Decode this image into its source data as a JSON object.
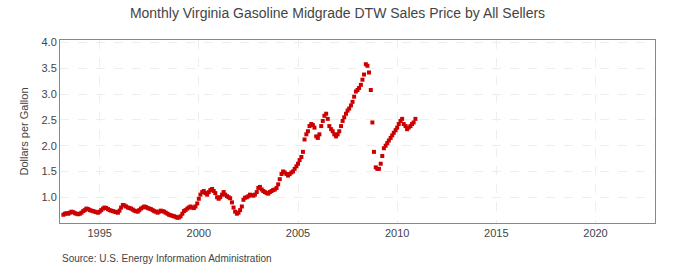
{
  "chart_data": {
    "type": "scatter",
    "title": "Monthly Virginia Gasoline Midgrade DTW Sales Price by All Sellers",
    "ylabel": "Dollars per Gallon",
    "annotations": [
      "Source: U.S. Energy Information Administration"
    ],
    "color": "#cc0000",
    "marker": "square",
    "grid": true,
    "xlim": [
      1993.0,
      2023.0
    ],
    "ylim": [
      0.5,
      4.05
    ],
    "xticks": [
      1995,
      2000,
      2005,
      2010,
      2015,
      2020
    ],
    "yticks": [
      {
        "value": 1.0,
        "label": "1.0"
      },
      {
        "value": 1.5,
        "label": "1.5"
      },
      {
        "value": 2.0,
        "label": "2.0"
      },
      {
        "value": 2.5,
        "label": "2.5"
      },
      {
        "value": 3.0,
        "label": "3.0"
      },
      {
        "value": 3.5,
        "label": "3.5"
      },
      {
        "value": 4.0,
        "label": "4.0"
      }
    ],
    "x": [
      1993.17,
      1993.25,
      1993.33,
      1993.42,
      1993.5,
      1993.58,
      1993.67,
      1993.75,
      1993.83,
      1993.92,
      1994.0,
      1994.08,
      1994.17,
      1994.25,
      1994.33,
      1994.42,
      1994.5,
      1994.58,
      1994.67,
      1994.75,
      1994.83,
      1994.92,
      1995.0,
      1995.08,
      1995.17,
      1995.25,
      1995.33,
      1995.42,
      1995.5,
      1995.58,
      1995.67,
      1995.75,
      1995.83,
      1995.92,
      1996.0,
      1996.08,
      1996.17,
      1996.25,
      1996.33,
      1996.42,
      1996.5,
      1996.58,
      1996.67,
      1996.75,
      1996.83,
      1996.92,
      1997.0,
      1997.08,
      1997.17,
      1997.25,
      1997.33,
      1997.42,
      1997.5,
      1997.58,
      1997.67,
      1997.75,
      1997.83,
      1997.92,
      1998.0,
      1998.08,
      1998.17,
      1998.25,
      1998.33,
      1998.42,
      1998.5,
      1998.58,
      1998.67,
      1998.75,
      1998.83,
      1998.92,
      1999.0,
      1999.08,
      1999.17,
      1999.25,
      1999.33,
      1999.42,
      1999.5,
      1999.58,
      1999.67,
      1999.75,
      1999.83,
      1999.92,
      2000.0,
      2000.08,
      2000.17,
      2000.25,
      2000.33,
      2000.42,
      2000.5,
      2000.58,
      2000.67,
      2000.75,
      2000.83,
      2000.92,
      2001.0,
      2001.08,
      2001.17,
      2001.25,
      2001.33,
      2001.42,
      2001.5,
      2001.58,
      2001.67,
      2001.75,
      2001.83,
      2001.92,
      2002.0,
      2002.08,
      2002.17,
      2002.25,
      2002.33,
      2002.42,
      2002.5,
      2002.58,
      2002.67,
      2002.75,
      2002.83,
      2002.92,
      2003.0,
      2003.08,
      2003.17,
      2003.25,
      2003.33,
      2003.42,
      2003.5,
      2003.58,
      2003.67,
      2003.75,
      2003.83,
      2003.92,
      2004.0,
      2004.08,
      2004.17,
      2004.25,
      2004.33,
      2004.42,
      2004.5,
      2004.58,
      2004.67,
      2004.75,
      2004.83,
      2004.92,
      2005.0,
      2005.08,
      2005.17,
      2005.25,
      2005.33,
      2005.42,
      2005.5,
      2005.58,
      2005.67,
      2005.75,
      2005.83,
      2005.92,
      2006.0,
      2006.08,
      2006.17,
      2006.25,
      2006.33,
      2006.42,
      2006.5,
      2006.58,
      2006.67,
      2006.75,
      2006.83,
      2006.92,
      2007.0,
      2007.08,
      2007.17,
      2007.25,
      2007.33,
      2007.42,
      2007.5,
      2007.58,
      2007.67,
      2007.75,
      2007.83,
      2007.92,
      2008.0,
      2008.08,
      2008.17,
      2008.25,
      2008.33,
      2008.42,
      2008.5,
      2008.58,
      2008.67,
      2008.75,
      2008.83,
      2008.92,
      2009.0,
      2009.08,
      2009.17,
      2009.25,
      2009.33,
      2009.42,
      2009.5,
      2009.58,
      2009.67,
      2009.75,
      2009.83,
      2009.92,
      2010.0,
      2010.08,
      2010.17,
      2010.25,
      2010.33,
      2010.42,
      2010.5,
      2010.58,
      2010.67,
      2010.75,
      2010.83,
      2010.92
    ],
    "values": [
      0.66,
      0.68,
      0.69,
      0.68,
      0.7,
      0.72,
      0.71,
      0.69,
      0.68,
      0.67,
      0.68,
      0.7,
      0.73,
      0.75,
      0.78,
      0.77,
      0.75,
      0.74,
      0.73,
      0.72,
      0.71,
      0.7,
      0.72,
      0.75,
      0.78,
      0.8,
      0.79,
      0.77,
      0.75,
      0.74,
      0.73,
      0.72,
      0.71,
      0.7,
      0.74,
      0.8,
      0.85,
      0.84,
      0.82,
      0.8,
      0.79,
      0.78,
      0.76,
      0.74,
      0.73,
      0.72,
      0.75,
      0.78,
      0.8,
      0.82,
      0.81,
      0.79,
      0.78,
      0.77,
      0.75,
      0.73,
      0.72,
      0.7,
      0.72,
      0.74,
      0.73,
      0.72,
      0.7,
      0.68,
      0.66,
      0.65,
      0.64,
      0.63,
      0.62,
      0.6,
      0.61,
      0.63,
      0.68,
      0.73,
      0.75,
      0.78,
      0.8,
      0.82,
      0.8,
      0.79,
      0.82,
      0.88,
      0.97,
      1.05,
      1.1,
      1.12,
      1.08,
      1.05,
      1.1,
      1.14,
      1.16,
      1.12,
      1.08,
      1.0,
      0.97,
      1.0,
      1.05,
      1.1,
      1.05,
      1.02,
      1.0,
      0.98,
      0.9,
      0.8,
      0.72,
      0.68,
      0.7,
      0.75,
      0.82,
      0.95,
      0.99,
      1.0,
      1.02,
      1.05,
      1.04,
      1.03,
      1.05,
      1.1,
      1.18,
      1.2,
      1.15,
      1.12,
      1.1,
      1.08,
      1.07,
      1.1,
      1.12,
      1.14,
      1.15,
      1.18,
      1.25,
      1.35,
      1.45,
      1.5,
      1.48,
      1.45,
      1.42,
      1.45,
      1.48,
      1.5,
      1.55,
      1.6,
      1.65,
      1.72,
      1.78,
      1.88,
      2.12,
      2.22,
      2.28,
      2.38,
      2.42,
      2.4,
      2.35,
      2.18,
      2.15,
      2.22,
      2.38,
      2.48,
      2.58,
      2.62,
      2.52,
      2.38,
      2.32,
      2.28,
      2.22,
      2.18,
      2.22,
      2.28,
      2.38,
      2.48,
      2.55,
      2.62,
      2.68,
      2.72,
      2.78,
      2.85,
      2.95,
      3.05,
      3.08,
      3.12,
      3.18,
      3.28,
      3.38,
      3.58,
      3.55,
      3.42,
      3.08,
      2.45,
      1.88,
      1.58,
      1.55,
      1.55,
      1.65,
      1.8,
      1.95,
      2.0,
      2.05,
      2.1,
      2.15,
      2.2,
      2.25,
      2.3,
      2.35,
      2.42,
      2.48,
      2.52,
      2.42,
      2.38,
      2.32,
      2.35,
      2.38,
      2.42,
      2.45,
      2.52
    ]
  }
}
